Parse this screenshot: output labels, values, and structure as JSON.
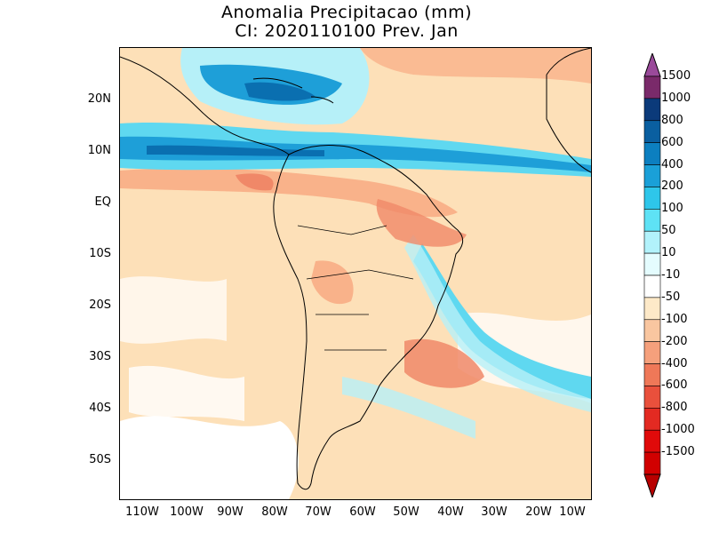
{
  "title": {
    "line1": "Anomalia Precipitacao (mm)",
    "line2": "CI: 2020110100 Prev. Jan"
  },
  "map": {
    "lat_labels": [
      "20N",
      "10N",
      "EQ",
      "10S",
      "20S",
      "30S",
      "40S",
      "50S"
    ],
    "lon_labels": [
      "110W",
      "100W",
      "90W",
      "80W",
      "70W",
      "60W",
      "50W",
      "40W",
      "30W",
      "20W",
      "10W"
    ],
    "field_colors": {
      "light_orange": "#fde0b8",
      "orange": "#f9b28a",
      "strong_orange": "#f08868",
      "cyan_light": "#b6f0f8",
      "cyan": "#5fd8f0",
      "blue": "#1e9fd8",
      "dark_blue": "#0a6fb0",
      "white": "#ffffff"
    }
  },
  "colorbar": {
    "labels": [
      "1500",
      "1000",
      "800",
      "600",
      "400",
      "200",
      "100",
      "50",
      "10",
      "-10",
      "-50",
      "-100",
      "-200",
      "-400",
      "-600",
      "-800",
      "-1000",
      "-1500"
    ],
    "colors": [
      "#7a2a6a",
      "#0b3a7a",
      "#0a5fa0",
      "#0c7fc0",
      "#1aa0d8",
      "#2ec6ea",
      "#5ee2f5",
      "#b2f2fb",
      "#e4fcfe",
      "#ffffff",
      "#fde9c8",
      "#f9c6a0",
      "#f5a07c",
      "#ef7858",
      "#e9503c",
      "#e32a22",
      "#e00a0a",
      "#d10000"
    ],
    "top_arrow_color": "#9a4a9a",
    "bottom_arrow_color": "#b80000"
  }
}
